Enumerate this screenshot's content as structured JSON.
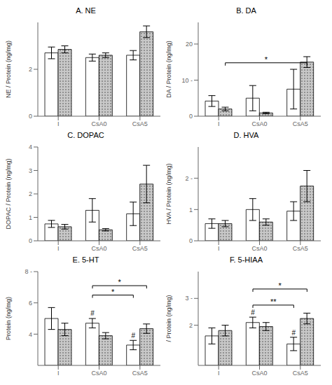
{
  "chart_data": [
    {
      "type": "bar",
      "title": "A. NE",
      "y_label": "NE / Protein (ng/mg)",
      "categories": [
        "I",
        "CsA0",
        "CsA5"
      ],
      "series": [
        {
          "color": "white",
          "values": [
            2.7,
            2.5,
            2.6
          ],
          "errors": [
            0.25,
            0.15,
            0.2
          ]
        },
        {
          "color": "#c8c8c8",
          "values": [
            2.85,
            2.6,
            3.6
          ],
          "errors": [
            0.15,
            0.1,
            0.25
          ]
        }
      ],
      "ylim": [
        0,
        4
      ],
      "yticks": [
        0,
        2
      ],
      "grid": false,
      "annotations": []
    },
    {
      "type": "bar",
      "title": "B. DA",
      "y_label": "DA / Protein (ng/mg)",
      "categories": [
        "I",
        "CsA0",
        "CsA5"
      ],
      "series": [
        {
          "color": "white",
          "values": [
            4.2,
            5.0,
            7.5
          ],
          "errors": [
            1.5,
            3.5,
            5.5
          ]
        },
        {
          "color": "#c8c8c8",
          "values": [
            2.0,
            0.9,
            15.0
          ],
          "errors": [
            0.5,
            0.2,
            1.5
          ]
        }
      ],
      "ylim": [
        0,
        26
      ],
      "yticks": [
        0,
        {
          "value": 10,
          "label": "10 -"
        },
        20
      ],
      "grid": false,
      "annotations": [
        {
          "type": "bracket",
          "text": "*",
          "y": 14.8,
          "from": {
            "x": "I",
            "series": 1
          },
          "to": {
            "x": "CsA5",
            "series": 1
          }
        }
      ]
    },
    {
      "type": "bar",
      "title": "C. DOPAC",
      "y_label": "DOPAC / Protein (ng/mg)",
      "categories": [
        "I",
        "CsA0",
        "CsA5"
      ],
      "series": [
        {
          "color": "white",
          "values": [
            0.72,
            1.3,
            1.15
          ],
          "errors": [
            0.15,
            0.5,
            0.5
          ]
        },
        {
          "color": "#c8c8c8",
          "values": [
            0.6,
            0.47,
            2.42
          ],
          "errors": [
            0.1,
            0.05,
            0.8
          ]
        }
      ],
      "ylim": [
        0,
        4
      ],
      "yticks": [
        0,
        1,
        2,
        3,
        4
      ],
      "grid": false,
      "annotations": []
    },
    {
      "type": "bar",
      "title": "D. HVA",
      "y_label": "HVA / Protein (ng/mg)",
      "categories": [
        "I",
        "CsA0",
        "CsA5"
      ],
      "series": [
        {
          "color": "white",
          "values": [
            0.55,
            1.0,
            0.95
          ],
          "errors": [
            0.15,
            0.35,
            0.3
          ]
        },
        {
          "color": "#c8c8c8",
          "values": [
            0.55,
            0.6,
            1.75
          ],
          "errors": [
            0.1,
            0.1,
            0.5
          ]
        }
      ],
      "ylim": [
        0,
        3
      ],
      "yticks": [
        0,
        1,
        {
          "value": 2,
          "label": "2 -"
        }
      ],
      "grid": false,
      "annotations": []
    },
    {
      "type": "bar",
      "title": "E. 5-HT",
      "y_label": "Protein (ng/mg)",
      "categories": [
        "I",
        "CsA0",
        "CsA5"
      ],
      "series": [
        {
          "color": "white",
          "values": [
            5.0,
            4.7,
            3.3
          ],
          "errors": [
            0.7,
            0.3,
            0.3
          ]
        },
        {
          "color": "#c8c8c8",
          "values": [
            4.3,
            3.9,
            4.35
          ],
          "errors": [
            0.4,
            0.2,
            0.3
          ]
        }
      ],
      "ylim": [
        2,
        8
      ],
      "yticks": [
        4,
        6,
        {
          "value": 8,
          "label": "8 -"
        }
      ],
      "grid": false,
      "annotations": [
        {
          "type": "text",
          "text": "#",
          "x": "CsA0",
          "series": 0,
          "y": 5.12
        },
        {
          "type": "text",
          "text": "#",
          "x": "CsA5",
          "series": 0,
          "y": 3.72
        },
        {
          "type": "bracket",
          "text": "*",
          "y": 6.5,
          "from": {
            "x": "CsA0",
            "series": 0
          },
          "to": {
            "x": "CsA5",
            "series": 0
          }
        },
        {
          "type": "bracket",
          "text": "*",
          "y": 7.1,
          "from": {
            "x": "CsA0",
            "series": 0
          },
          "to": {
            "x": "CsA5",
            "series": 1
          }
        }
      ]
    },
    {
      "type": "bar",
      "title": "F. 5-HIAA",
      "y_label": "/ Protein (ng/mg)",
      "categories": [
        "I",
        "CsA0",
        "CsA5"
      ],
      "series": [
        {
          "color": "white",
          "values": [
            1.6,
            2.1,
            1.3
          ],
          "errors": [
            0.3,
            0.2,
            0.25
          ]
        },
        {
          "color": "#c8c8c8",
          "values": [
            1.8,
            1.95,
            2.25
          ],
          "errors": [
            0.2,
            0.15,
            0.2
          ]
        }
      ],
      "ylim": [
        0.5,
        4
      ],
      "yticks": [
        2,
        {
          "value": 3,
          "label": "3 -"
        }
      ],
      "grid": false,
      "annotations": [
        {
          "type": "text",
          "text": "#",
          "x": "CsA0",
          "series": 0,
          "y": 2.35
        },
        {
          "type": "text",
          "text": "#",
          "x": "CsA5",
          "series": 0,
          "y": 1.6
        },
        {
          "type": "bracket",
          "text": "**",
          "y": 2.75,
          "from": {
            "x": "CsA0",
            "series": 0
          },
          "to": {
            "x": "CsA5",
            "series": 0
          }
        },
        {
          "type": "bracket",
          "text": "*",
          "y": 3.35,
          "from": {
            "x": "CsA0",
            "series": 0
          },
          "to": {
            "x": "CsA5",
            "series": 1
          }
        }
      ]
    }
  ]
}
